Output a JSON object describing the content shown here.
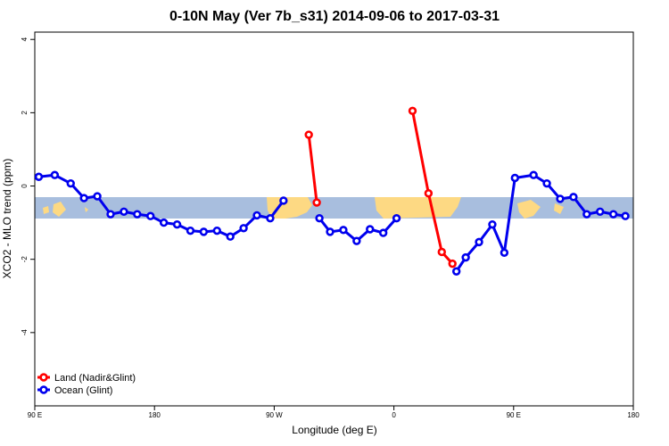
{
  "chart_data": {
    "type": "line",
    "title": "0-10N May (Ver 7b_s31)   2014-09-06 to 2017-03-31",
    "xlabel": "Longitude (deg E)",
    "ylabel": "XCO2 - MLO trend (ppm)",
    "xlim": [
      90,
      540
    ],
    "ylim": [
      -6,
      4.2
    ],
    "x_ticks": [
      {
        "value": 90,
        "label": "90 E"
      },
      {
        "value": 180,
        "label": "180"
      },
      {
        "value": 270,
        "label": "90 W"
      },
      {
        "value": 360,
        "label": "0"
      },
      {
        "value": 450,
        "label": "90 E"
      },
      {
        "value": 540,
        "label": "180"
      }
    ],
    "y_ticks": [
      {
        "value": 4,
        "label": "4"
      },
      {
        "value": 2,
        "label": "2"
      },
      {
        "value": 0,
        "label": "0"
      },
      {
        "value": -2,
        "label": "-2"
      },
      {
        "value": -4,
        "label": "-4"
      }
    ],
    "grid": false,
    "legend_position": "bottom-left",
    "colors": {
      "land": "#ff0000",
      "ocean": "#0000ee",
      "band_ocean": "#a8bede",
      "band_land": "#fdd983"
    },
    "series": [
      {
        "name": "Land (Nadir&Glint)",
        "color": "#ff0000",
        "segments": [
          {
            "x": [
              296,
              302
            ],
            "y": [
              1.4,
              -0.45
            ]
          },
          {
            "x": [
              374,
              386,
              396,
              404
            ],
            "y": [
              2.05,
              -0.2,
              -1.8,
              -2.12
            ]
          }
        ]
      },
      {
        "name": "Ocean (Glint)",
        "color": "#0000ee",
        "segments": [
          {
            "x": [
              93,
              105,
              117,
              127,
              137,
              147,
              157,
              167,
              177,
              187,
              197,
              207,
              217,
              227,
              237,
              247,
              257,
              267,
              277
            ],
            "y": [
              0.25,
              0.3,
              0.07,
              -0.33,
              -0.28,
              -0.77,
              -0.7,
              -0.77,
              -0.82,
              -1.0,
              -1.05,
              -1.22,
              -1.25,
              -1.22,
              -1.38,
              -1.15,
              -0.8,
              -0.88,
              -0.4
            ]
          },
          {
            "x": [
              304,
              312,
              322,
              332,
              342,
              352,
              362
            ],
            "y": [
              -0.88,
              -1.25,
              -1.2,
              -1.5,
              -1.18,
              -1.28,
              -0.88
            ]
          },
          {
            "x": [
              407,
              414,
              424,
              434,
              443,
              451,
              465,
              475,
              485,
              495,
              505,
              515,
              525,
              534
            ],
            "y": [
              -2.33,
              -1.95,
              -1.53,
              -1.05,
              -1.82,
              0.22,
              0.3,
              0.07,
              -0.35,
              -0.3,
              -0.77,
              -0.7,
              -0.77,
              -0.82
            ]
          }
        ]
      }
    ]
  }
}
